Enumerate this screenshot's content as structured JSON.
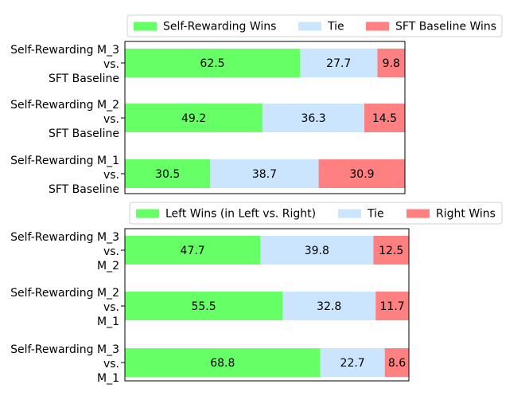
{
  "chart_data": [
    {
      "type": "bar",
      "orientation": "horizontal",
      "stacked": true,
      "legend_position": "top",
      "legend": [
        "Self-Rewarding Wins",
        "Tie",
        "SFT Baseline Wins"
      ],
      "categories": [
        [
          "Self-Rewarding M_3",
          "vs.",
          "SFT Baseline"
        ],
        [
          "Self-Rewarding M_2",
          "vs.",
          "SFT Baseline"
        ],
        [
          "Self-Rewarding M_1",
          "vs.",
          "SFT Baseline"
        ]
      ],
      "series": [
        {
          "name": "Self-Rewarding Wins",
          "color": "#66ff66",
          "values": [
            62.5,
            49.2,
            30.5
          ]
        },
        {
          "name": "Tie",
          "color": "#cce5ff",
          "values": [
            27.7,
            36.3,
            38.7
          ]
        },
        {
          "name": "SFT Baseline Wins",
          "color": "#ff8080",
          "values": [
            9.8,
            14.5,
            30.9
          ]
        }
      ],
      "xlim": [
        0,
        100
      ]
    },
    {
      "type": "bar",
      "orientation": "horizontal",
      "stacked": true,
      "legend_position": "top",
      "legend": [
        "Left Wins (in Left vs. Right)",
        "Tie",
        "Right Wins"
      ],
      "categories": [
        [
          "Self-Rewarding M_3",
          "vs.",
          "M_2"
        ],
        [
          "Self-Rewarding M_2",
          "vs.",
          "M_1"
        ],
        [
          "Self-Rewarding M_3",
          "vs.",
          "M_1"
        ]
      ],
      "series": [
        {
          "name": "Left Wins (in Left vs. Right)",
          "color": "#66ff66",
          "values": [
            47.7,
            55.5,
            68.8
          ]
        },
        {
          "name": "Tie",
          "color": "#cce5ff",
          "values": [
            39.8,
            32.8,
            22.7
          ]
        },
        {
          "name": "Right Wins",
          "color": "#ff8080",
          "values": [
            12.5,
            11.7,
            8.6
          ]
        }
      ],
      "xlim": [
        0,
        100
      ]
    }
  ]
}
